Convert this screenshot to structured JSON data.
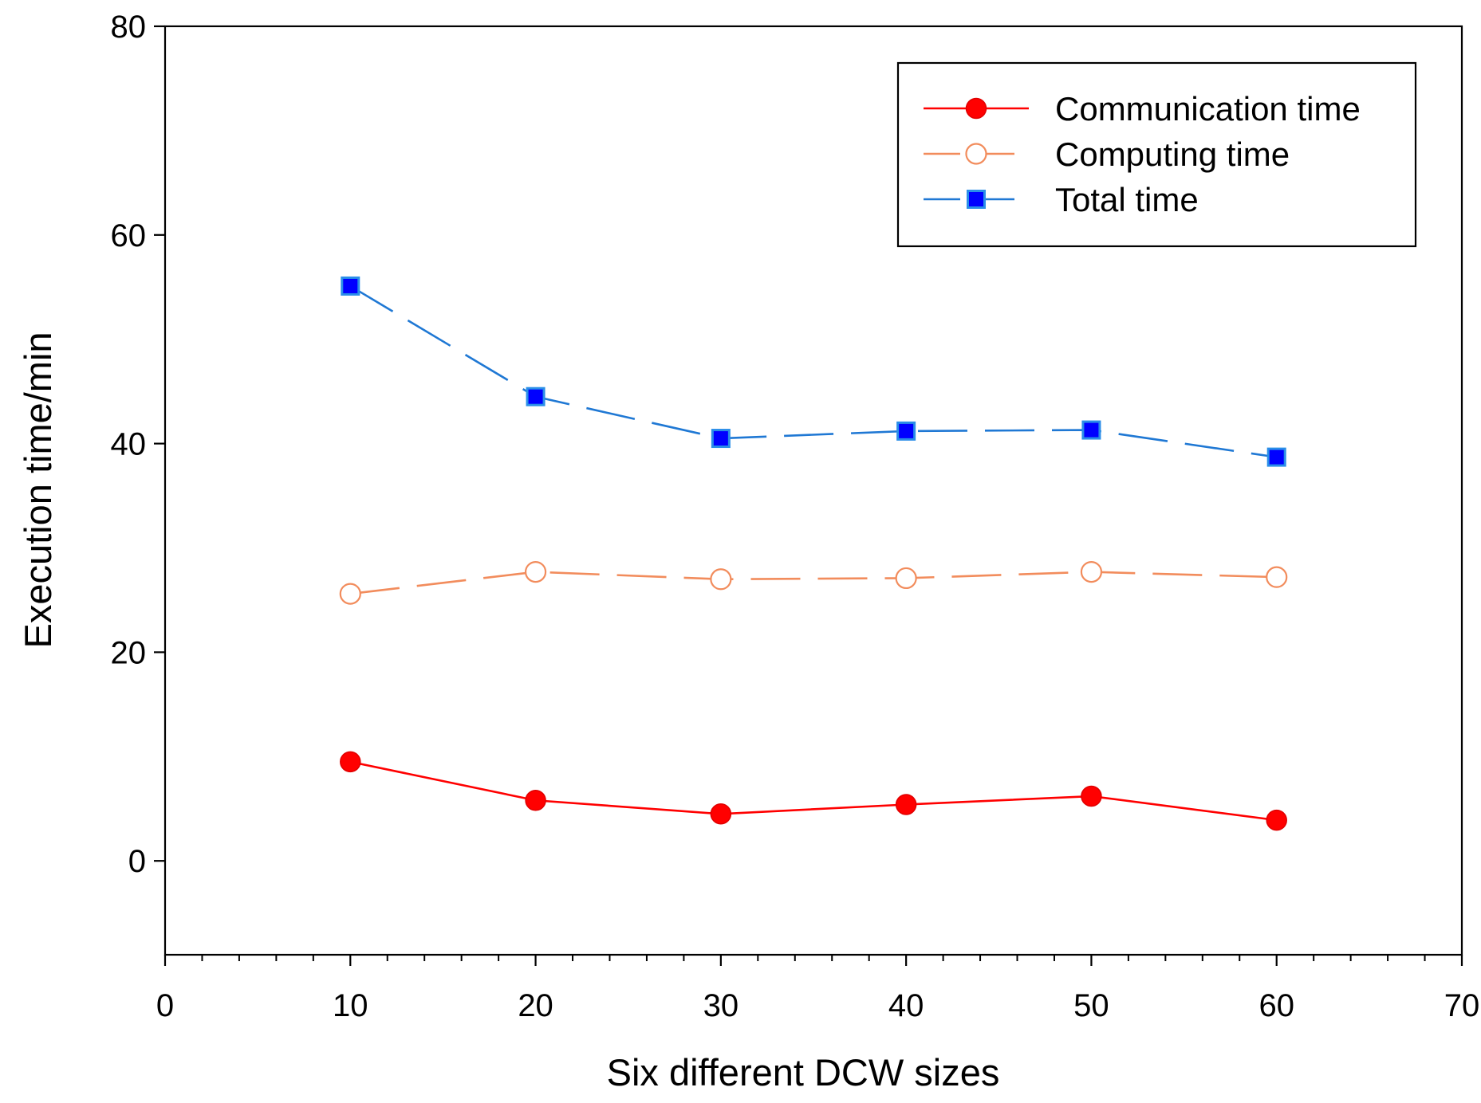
{
  "chart_data": {
    "type": "line",
    "title": "",
    "xlabel": "Six different DCW sizes",
    "ylabel": "Execution time/min",
    "xlim": [
      0,
      70
    ],
    "ylim": [
      -9,
      80
    ],
    "x_ticks": [
      0,
      10,
      20,
      30,
      40,
      50,
      60,
      70
    ],
    "x_tick_labels": [
      "0",
      "10",
      "20",
      "30",
      "40",
      "50",
      "60",
      "70"
    ],
    "x_minor_step": 2,
    "y_ticks": [
      0,
      20,
      40,
      60,
      80
    ],
    "y_tick_labels": [
      "0",
      "20",
      "40",
      "60",
      "80"
    ],
    "grid": false,
    "legend_position": "top-right",
    "x": [
      10,
      20,
      30,
      40,
      50,
      60
    ],
    "series": [
      {
        "name": "Communication time",
        "values": [
          9.5,
          5.8,
          4.5,
          5.4,
          6.2,
          3.9
        ],
        "color": "#ff0000",
        "line_color": "#ff0000",
        "marker": "filled-circle",
        "line_style": "solid"
      },
      {
        "name": "Computing time",
        "values": [
          25.6,
          27.7,
          27.0,
          27.1,
          27.7,
          27.2
        ],
        "color": "#f28c5c",
        "line_color": "#f28c5c",
        "marker": "open-circle",
        "line_style": "dashed"
      },
      {
        "name": "Total time",
        "values": [
          55.1,
          44.5,
          40.5,
          41.2,
          41.3,
          38.7
        ],
        "color": "#0000ff",
        "line_color": "#1f78d4",
        "marker": "filled-square",
        "line_style": "dashed"
      }
    ]
  }
}
